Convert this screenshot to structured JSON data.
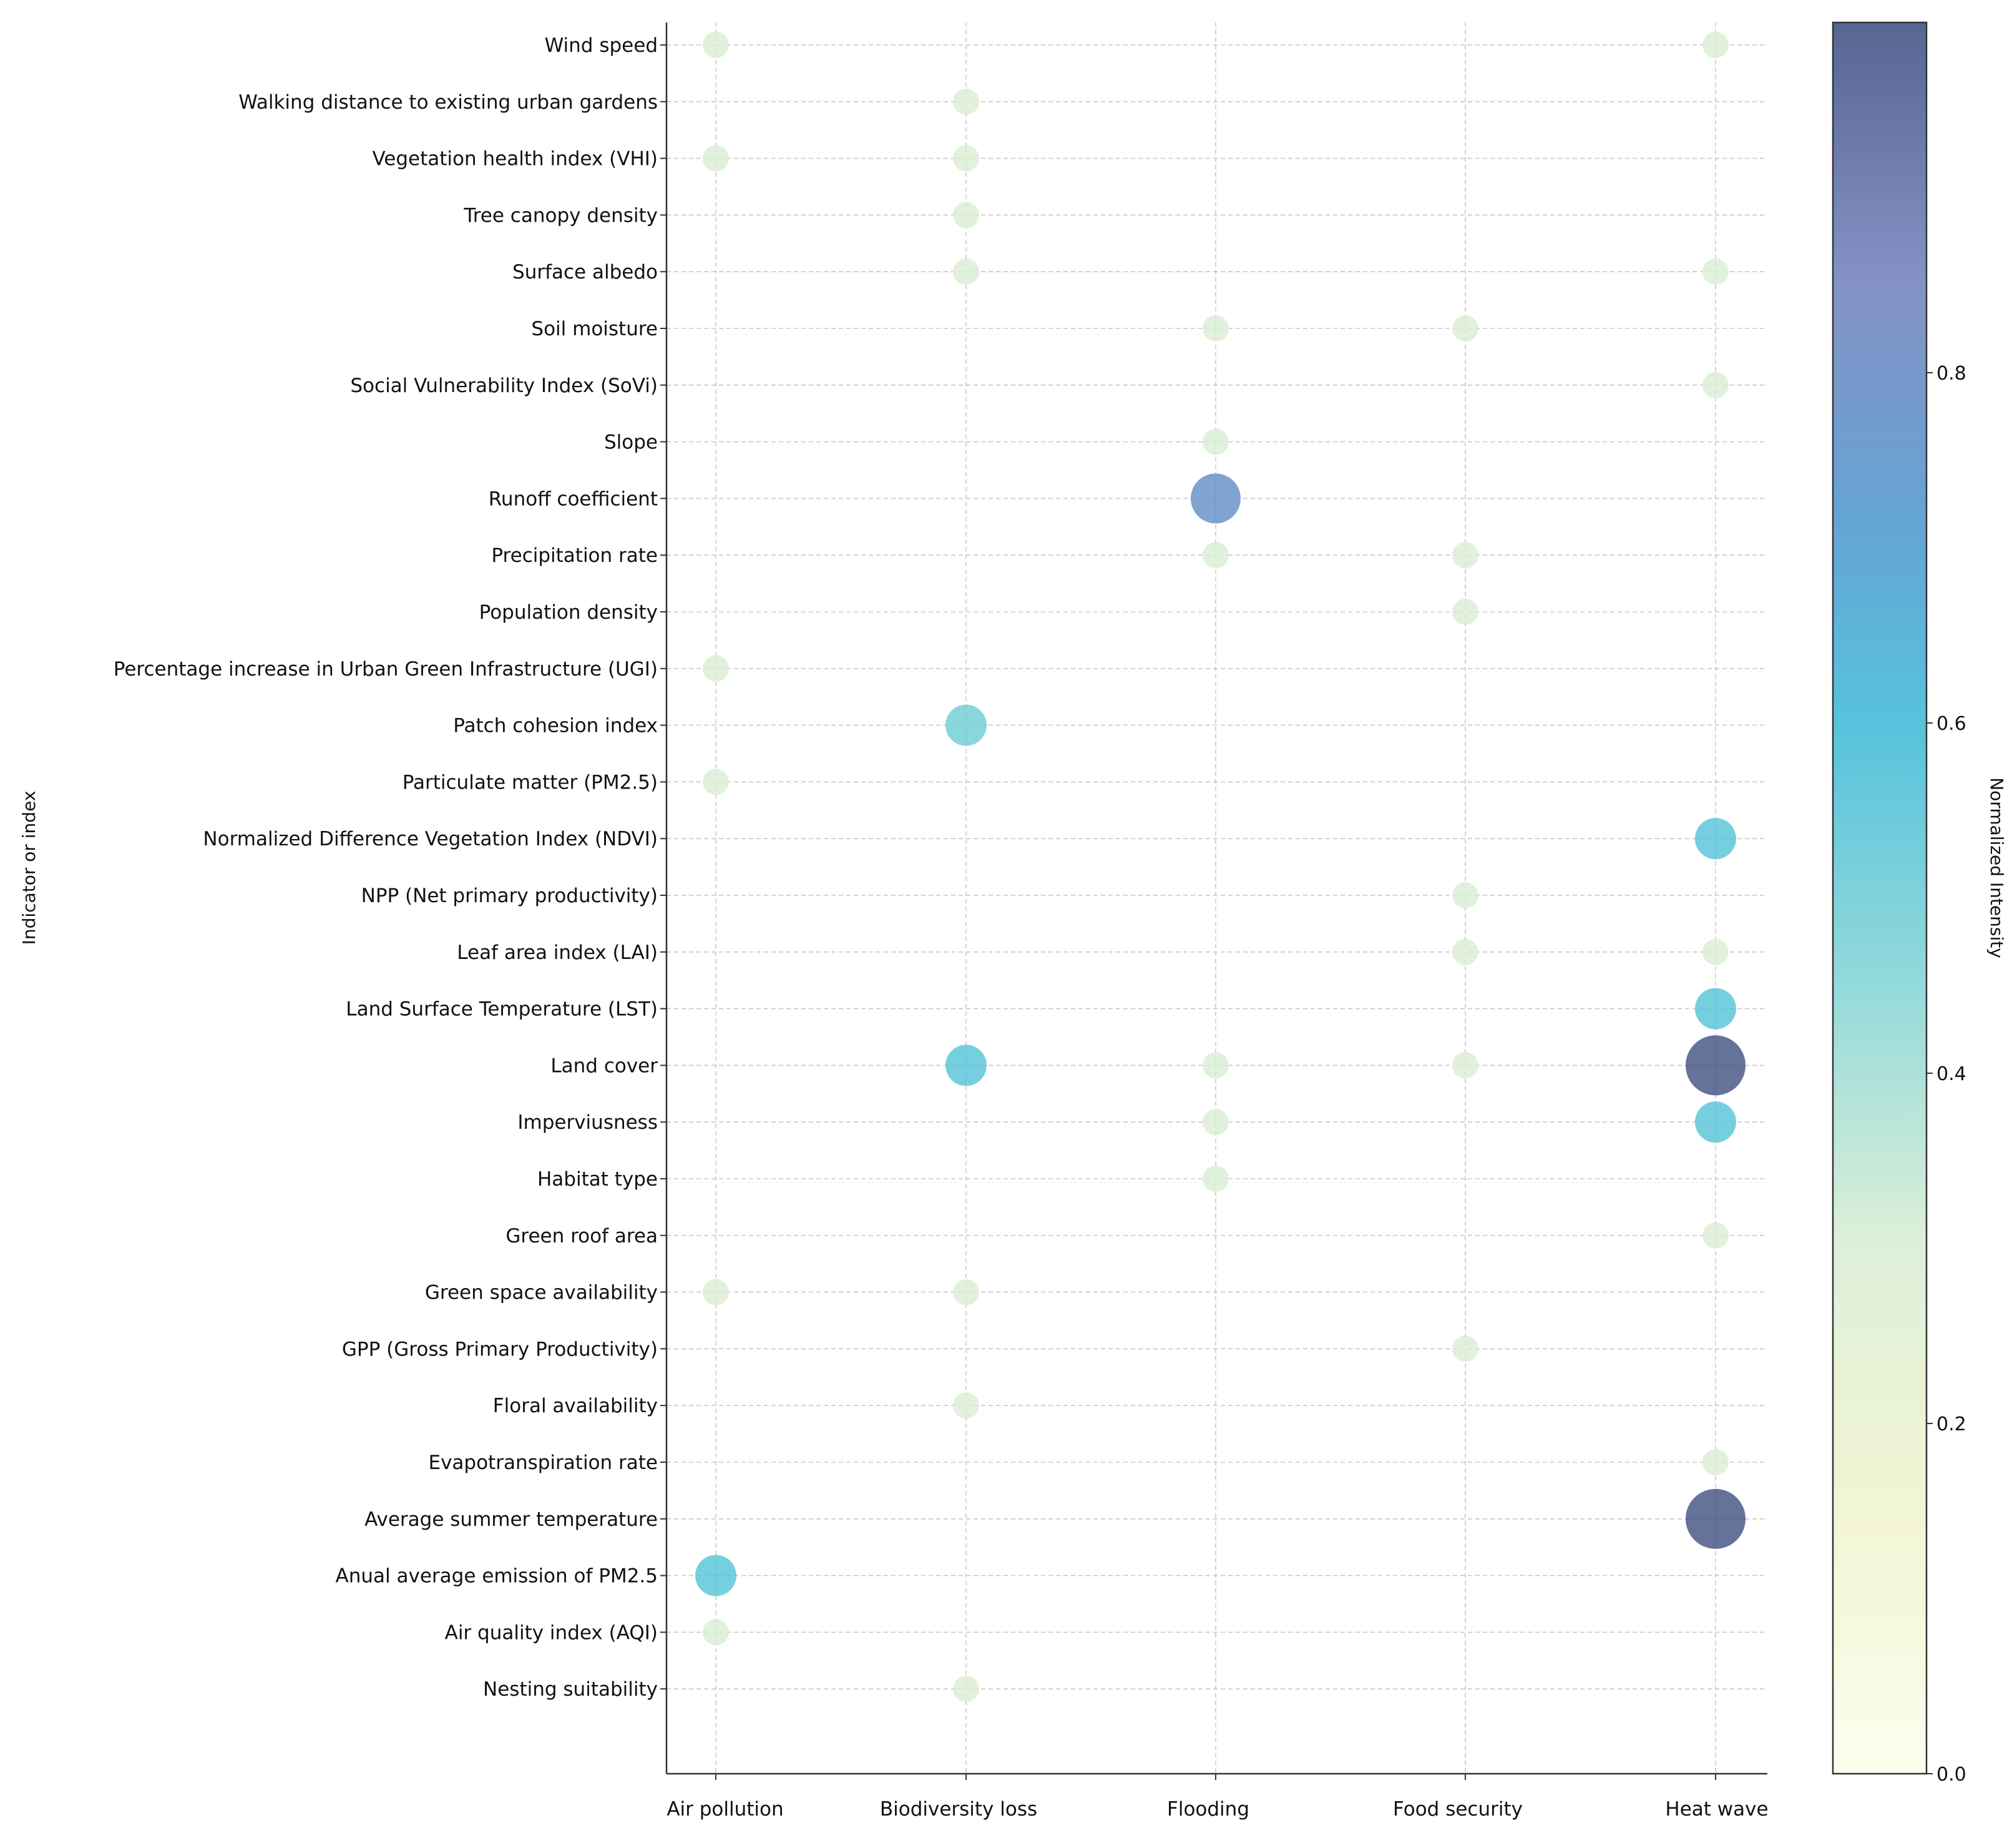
{
  "chart_data": {
    "type": "scatter",
    "title": "",
    "xlabel": "",
    "ylabel": "Indicator or index",
    "colorbar_label": "Normalized Intensity",
    "colorbar_range": [
      0.0,
      1.0
    ],
    "colorbar_ticks": [
      "0.0",
      "0.2",
      "0.4",
      "0.6",
      "0.8"
    ],
    "colorbar_tick_values": [
      0.0,
      0.2,
      0.4,
      0.6,
      0.8
    ],
    "colormap_stops": [
      {
        "v": 0.0,
        "c": "#fcfdea"
      },
      {
        "v": 0.15,
        "c": "#f0f3cd"
      },
      {
        "v": 0.3,
        "c": "#d9edd2"
      },
      {
        "v": 0.45,
        "c": "#80d3d3"
      },
      {
        "v": 0.6,
        "c": "#38b8d6"
      },
      {
        "v": 0.72,
        "c": "#4a93ca"
      },
      {
        "v": 0.85,
        "c": "#6f7fbd"
      },
      {
        "v": 1.0,
        "c": "#3a4a7e"
      }
    ],
    "grid": true,
    "categories_x": [
      "Air pollution",
      "Biodiversity loss",
      "Flooding",
      "Food security",
      "Heat wave"
    ],
    "categories_y": [
      "Wind speed",
      "Walking distance to existing urban gardens",
      "Vegetation health index (VHI)",
      "Tree canopy density",
      "Surface albedo",
      "Soil moisture",
      "Social Vulnerability Index (SoVi)",
      "Slope",
      "Runoff  coefficient",
      "Precipitation rate",
      "Population density",
      "Percentage increase in Urban Green Infrastructure (UGI)",
      "Patch cohesion index",
      "Particulate matter (PM2.5)",
      "Normalized Difference Vegetation Index (NDVI)",
      "NPP (Net primary productivity)",
      "Leaf area index (LAI)",
      "Land Surface Temperature (LST)",
      "Land cover",
      "Imperviusness",
      "Habitat type",
      "Green roof area",
      "Green space availability",
      "GPP (Gross Primary Productivity)",
      "Floral availability",
      "Evapotranspiration rate",
      "Average summer temperature",
      "Anual average emission of PM2.5",
      "Air quality index (AQI)",
      "Nesting suitability"
    ],
    "points": [
      {
        "x": "Air pollution",
        "y": "Wind speed",
        "value": 0.3
      },
      {
        "x": "Heat wave",
        "y": "Wind speed",
        "value": 0.3
      },
      {
        "x": "Biodiversity loss",
        "y": "Walking distance to existing urban gardens",
        "value": 0.3
      },
      {
        "x": "Air pollution",
        "y": "Vegetation health index (VHI)",
        "value": 0.3
      },
      {
        "x": "Biodiversity loss",
        "y": "Vegetation health index (VHI)",
        "value": 0.3
      },
      {
        "x": "Biodiversity loss",
        "y": "Tree canopy density",
        "value": 0.3
      },
      {
        "x": "Biodiversity loss",
        "y": "Surface albedo",
        "value": 0.3
      },
      {
        "x": "Heat wave",
        "y": "Surface albedo",
        "value": 0.3
      },
      {
        "x": "Flooding",
        "y": "Soil moisture",
        "value": 0.3
      },
      {
        "x": "Food security",
        "y": "Soil moisture",
        "value": 0.3
      },
      {
        "x": "Heat wave",
        "y": "Social Vulnerability Index (SoVi)",
        "value": 0.3
      },
      {
        "x": "Flooding",
        "y": "Slope",
        "value": 0.3
      },
      {
        "x": "Flooding",
        "y": "Runoff  coefficient",
        "value": 0.78
      },
      {
        "x": "Flooding",
        "y": "Precipitation rate",
        "value": 0.3
      },
      {
        "x": "Food security",
        "y": "Precipitation rate",
        "value": 0.3
      },
      {
        "x": "Food security",
        "y": "Population density",
        "value": 0.3
      },
      {
        "x": "Air pollution",
        "y": "Percentage increase in Urban Green Infrastructure (UGI)",
        "value": 0.3
      },
      {
        "x": "Biodiversity loss",
        "y": "Patch cohesion index",
        "value": 0.5
      },
      {
        "x": "Air pollution",
        "y": "Particulate matter (PM2.5)",
        "value": 0.3
      },
      {
        "x": "Heat wave",
        "y": "Normalized Difference Vegetation Index (NDVI)",
        "value": 0.55
      },
      {
        "x": "Food security",
        "y": "NPP (Net primary productivity)",
        "value": 0.3
      },
      {
        "x": "Food security",
        "y": "Leaf area index (LAI)",
        "value": 0.3
      },
      {
        "x": "Heat wave",
        "y": "Leaf area index (LAI)",
        "value": 0.3
      },
      {
        "x": "Heat wave",
        "y": "Land Surface Temperature (LST)",
        "value": 0.55
      },
      {
        "x": "Biodiversity loss",
        "y": "Land cover",
        "value": 0.55
      },
      {
        "x": "Flooding",
        "y": "Land cover",
        "value": 0.3
      },
      {
        "x": "Food security",
        "y": "Land cover",
        "value": 0.3
      },
      {
        "x": "Heat wave",
        "y": "Land cover",
        "value": 1.0
      },
      {
        "x": "Flooding",
        "y": "Imperviusness",
        "value": 0.3
      },
      {
        "x": "Heat wave",
        "y": "Imperviusness",
        "value": 0.55
      },
      {
        "x": "Flooding",
        "y": "Habitat type",
        "value": 0.3
      },
      {
        "x": "Heat wave",
        "y": "Green roof area",
        "value": 0.3
      },
      {
        "x": "Air pollution",
        "y": "Green space availability",
        "value": 0.3
      },
      {
        "x": "Biodiversity loss",
        "y": "Green space availability",
        "value": 0.3
      },
      {
        "x": "Food security",
        "y": "GPP (Gross Primary Productivity)",
        "value": 0.3
      },
      {
        "x": "Biodiversity loss",
        "y": "Floral availability",
        "value": 0.3
      },
      {
        "x": "Heat wave",
        "y": "Evapotranspiration rate",
        "value": 0.3
      },
      {
        "x": "Heat wave",
        "y": "Average summer temperature",
        "value": 1.0
      },
      {
        "x": "Air pollution",
        "y": "Anual average emission of PM2.5",
        "value": 0.55
      },
      {
        "x": "Air pollution",
        "y": "Air quality index (AQI)",
        "value": 0.3
      },
      {
        "x": "Biodiversity loss",
        "y": "Nesting suitability",
        "value": 0.3
      }
    ]
  }
}
